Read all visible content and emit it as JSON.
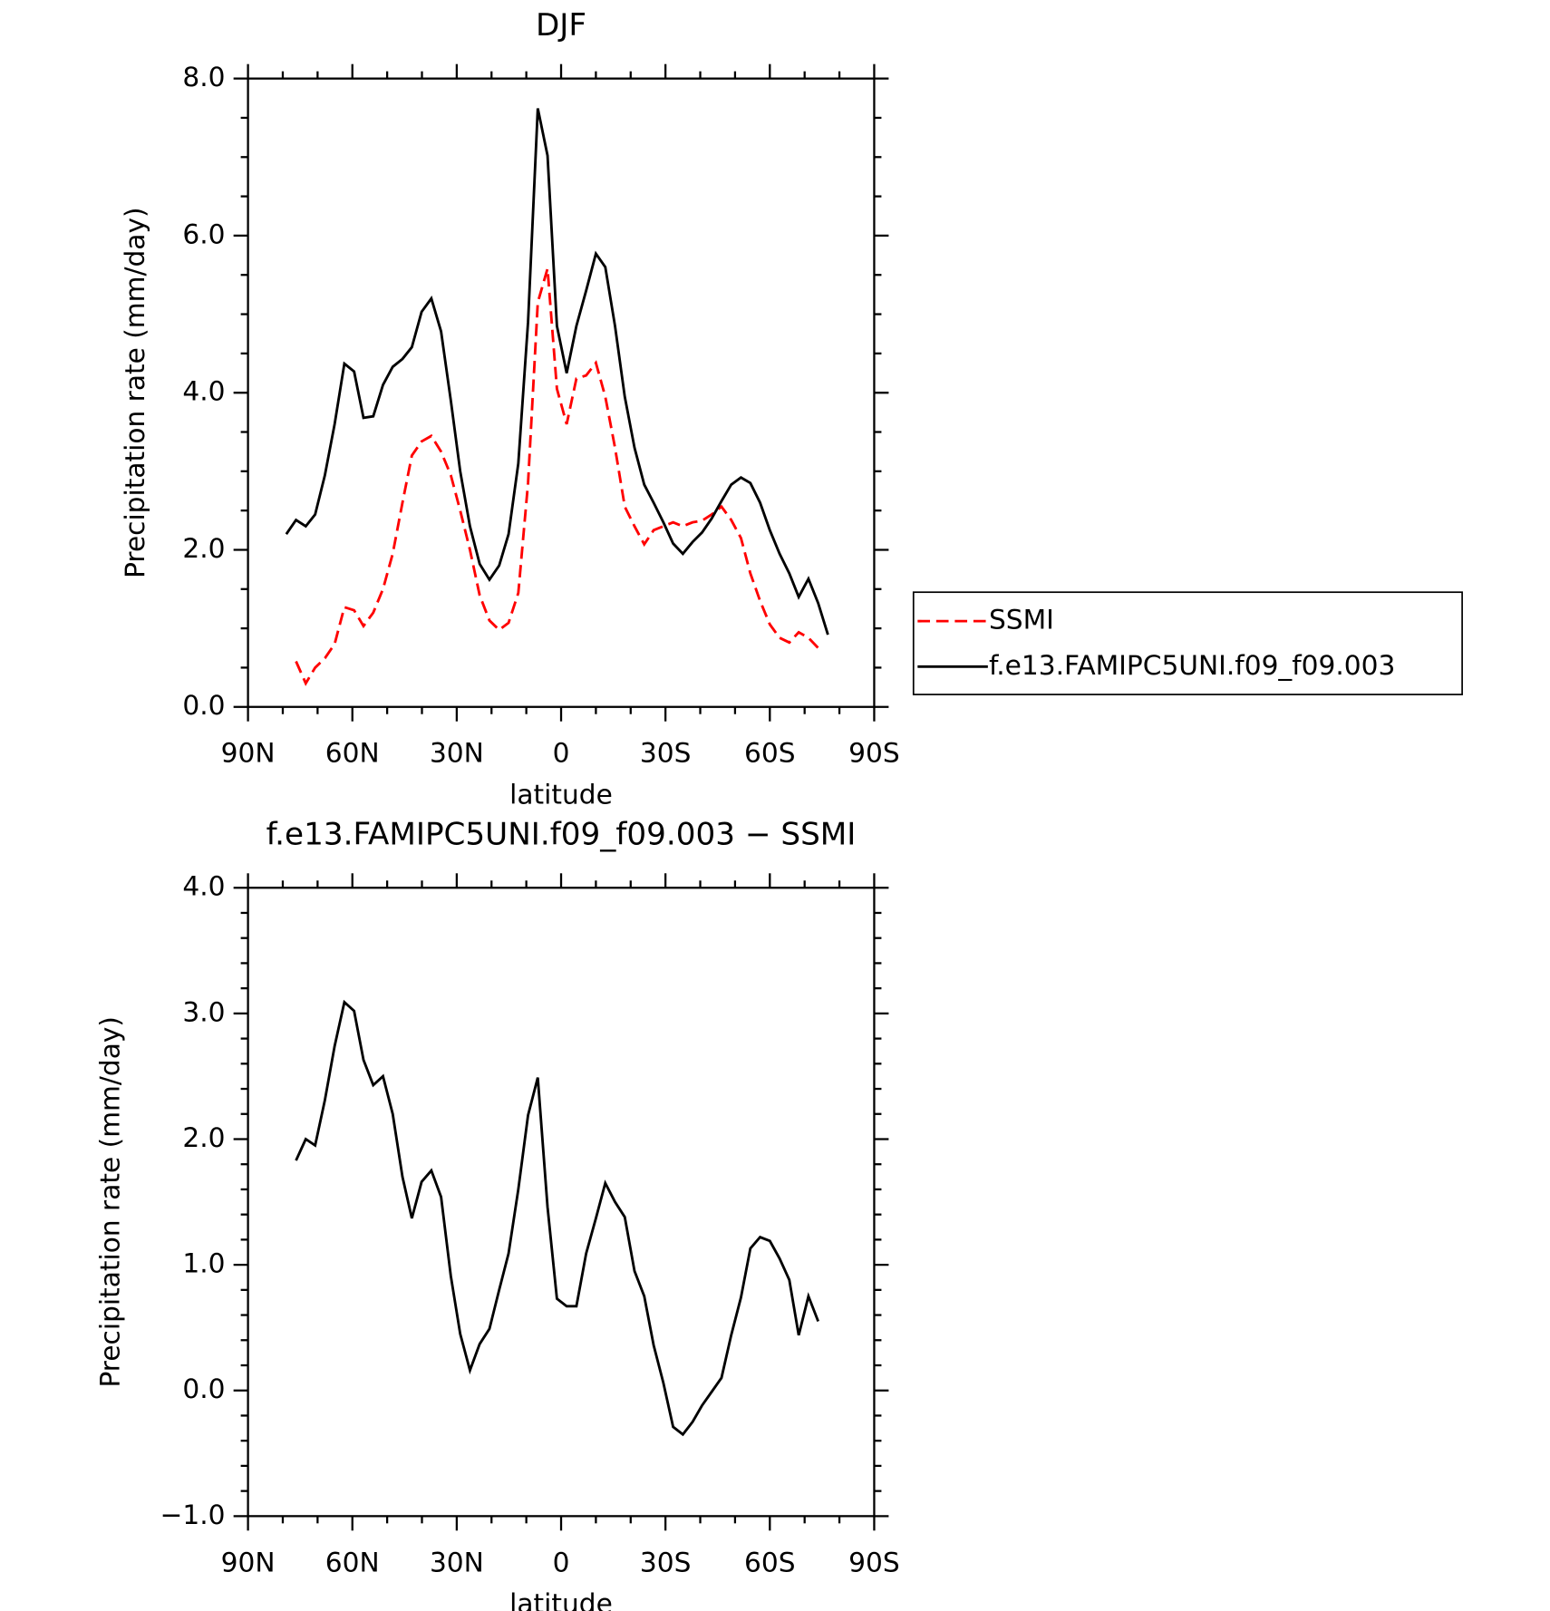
{
  "chart_data": [
    {
      "type": "line",
      "title": "DJF",
      "xlabel": "latitude",
      "ylabel": "Precipitation rate (mm/day)",
      "x": [
        79.0,
        76.2,
        73.4,
        70.7,
        67.9,
        65.1,
        62.3,
        59.5,
        56.8,
        54.0,
        51.2,
        48.4,
        45.6,
        42.9,
        40.1,
        37.3,
        34.5,
        31.7,
        29.0,
        26.2,
        23.4,
        20.6,
        17.8,
        15.1,
        12.3,
        9.5,
        6.7,
        3.9,
        1.2,
        -1.6,
        -4.4,
        -7.2,
        -10.0,
        -12.7,
        -15.5,
        -18.3,
        -21.1,
        -23.9,
        -26.6,
        -29.4,
        -32.2,
        -35.0,
        -37.8,
        -40.5,
        -43.3,
        -46.1,
        -48.9,
        -51.7,
        -54.4,
        -57.2,
        -60.0,
        -62.8,
        -65.6,
        -68.3,
        -71.1,
        -73.9,
        -76.7
      ],
      "series": [
        {
          "name": "SSMI",
          "color": "#ff0000",
          "line_style": "dashed",
          "values": [
            null,
            0.58,
            0.3,
            0.5,
            0.62,
            0.8,
            1.27,
            1.23,
            1.03,
            1.2,
            1.5,
            1.95,
            2.6,
            3.2,
            3.38,
            3.45,
            3.25,
            2.95,
            2.5,
            2.0,
            1.42,
            1.1,
            0.98,
            1.07,
            1.45,
            2.85,
            5.15,
            5.58,
            4.05,
            3.6,
            4.18,
            4.22,
            4.38,
            3.95,
            3.3,
            2.55,
            2.3,
            2.07,
            2.25,
            2.3,
            2.35,
            2.3,
            2.35,
            2.37,
            2.45,
            2.55,
            2.38,
            2.15,
            1.7,
            1.35,
            1.05,
            0.88,
            0.82,
            0.95,
            0.88,
            0.75,
            null
          ]
        },
        {
          "name": "f.e13.FAMIPC5UNI.f09_f09.003",
          "color": "#000000",
          "line_style": "solid",
          "values": [
            2.2,
            2.38,
            2.3,
            2.45,
            2.95,
            3.6,
            4.37,
            4.27,
            3.68,
            3.7,
            4.1,
            4.33,
            4.43,
            4.58,
            5.03,
            5.2,
            4.78,
            3.9,
            3.0,
            2.3,
            1.82,
            1.62,
            1.8,
            2.2,
            3.1,
            4.9,
            7.62,
            7.02,
            4.85,
            4.25,
            4.85,
            5.3,
            5.77,
            5.6,
            4.85,
            3.95,
            3.3,
            2.83,
            2.6,
            2.35,
            2.08,
            1.95,
            2.1,
            2.22,
            2.4,
            2.62,
            2.83,
            2.92,
            2.85,
            2.6,
            2.25,
            1.95,
            1.7,
            1.4,
            1.63,
            1.32,
            0.92
          ]
        }
      ],
      "xlim": [
        90,
        -90
      ],
      "xticks": [
        {
          "value": 90,
          "label": "90N"
        },
        {
          "value": 60,
          "label": "60N"
        },
        {
          "value": 30,
          "label": "30N"
        },
        0,
        {
          "value": -30,
          "label": "30S"
        },
        {
          "value": -60,
          "label": "60S"
        },
        {
          "value": -90,
          "label": "90S"
        }
      ],
      "ylim": [
        0,
        8
      ],
      "yticks": [
        {
          "value": 0,
          "label": "0.0"
        },
        {
          "value": 2,
          "label": "2.0"
        },
        {
          "value": 4,
          "label": "4.0"
        },
        {
          "value": 6,
          "label": "6.0"
        },
        {
          "value": 8,
          "label": "8.0"
        }
      ],
      "legend": "right"
    },
    {
      "type": "line",
      "title": "f.e13.FAMIPC5UNI.f09_f09.003 − SSMI",
      "xlabel": "latitude",
      "ylabel": "Precipitation rate (mm/day)",
      "x": [
        79.0,
        76.2,
        73.4,
        70.7,
        67.9,
        65.1,
        62.3,
        59.5,
        56.8,
        54.0,
        51.2,
        48.4,
        45.6,
        42.9,
        40.1,
        37.3,
        34.5,
        31.7,
        29.0,
        26.2,
        23.4,
        20.6,
        17.8,
        15.1,
        12.3,
        9.5,
        6.7,
        3.9,
        1.2,
        -1.6,
        -4.4,
        -7.2,
        -10.0,
        -12.7,
        -15.5,
        -18.3,
        -21.1,
        -23.9,
        -26.6,
        -29.4,
        -32.2,
        -35.0,
        -37.8,
        -40.5,
        -43.3,
        -46.1,
        -48.9,
        -51.7,
        -54.4,
        -57.2,
        -60.0,
        -62.8,
        -65.6,
        -68.3,
        -71.1,
        -73.9,
        -76.7
      ],
      "series": [
        {
          "color": "#000000",
          "line_style": "solid",
          "values": [
            null,
            1.83,
            2.0,
            1.95,
            2.31,
            2.74,
            3.09,
            3.02,
            2.63,
            2.43,
            2.5,
            2.2,
            1.7,
            1.37,
            1.66,
            1.75,
            1.54,
            0.91,
            0.45,
            0.16,
            0.37,
            0.49,
            0.8,
            1.09,
            1.6,
            2.19,
            2.49,
            1.46,
            0.73,
            0.67,
            0.67,
            1.09,
            1.37,
            1.65,
            1.5,
            1.38,
            0.95,
            0.75,
            0.36,
            0.06,
            -0.29,
            -0.35,
            -0.25,
            -0.12,
            -0.01,
            0.1,
            0.44,
            0.74,
            1.13,
            1.22,
            1.19,
            1.05,
            0.88,
            0.44,
            0.75,
            0.55,
            null
          ]
        }
      ],
      "xlim": [
        90,
        -90
      ],
      "xticks": [
        {
          "value": 90,
          "label": "90N"
        },
        {
          "value": 60,
          "label": "60N"
        },
        {
          "value": 30,
          "label": "30N"
        },
        0,
        {
          "value": -30,
          "label": "30S"
        },
        {
          "value": -60,
          "label": "60S"
        },
        {
          "value": -90,
          "label": "90S"
        }
      ],
      "ylim": [
        -1,
        4
      ],
      "yticks": [
        {
          "value": -1,
          "label": "−1.0"
        },
        {
          "value": 0,
          "label": "0.0"
        },
        {
          "value": 1,
          "label": "1.0"
        },
        {
          "value": 2,
          "label": "2.0"
        },
        {
          "value": 3,
          "label": "3.0"
        },
        {
          "value": 4,
          "label": "4.0"
        }
      ]
    }
  ]
}
